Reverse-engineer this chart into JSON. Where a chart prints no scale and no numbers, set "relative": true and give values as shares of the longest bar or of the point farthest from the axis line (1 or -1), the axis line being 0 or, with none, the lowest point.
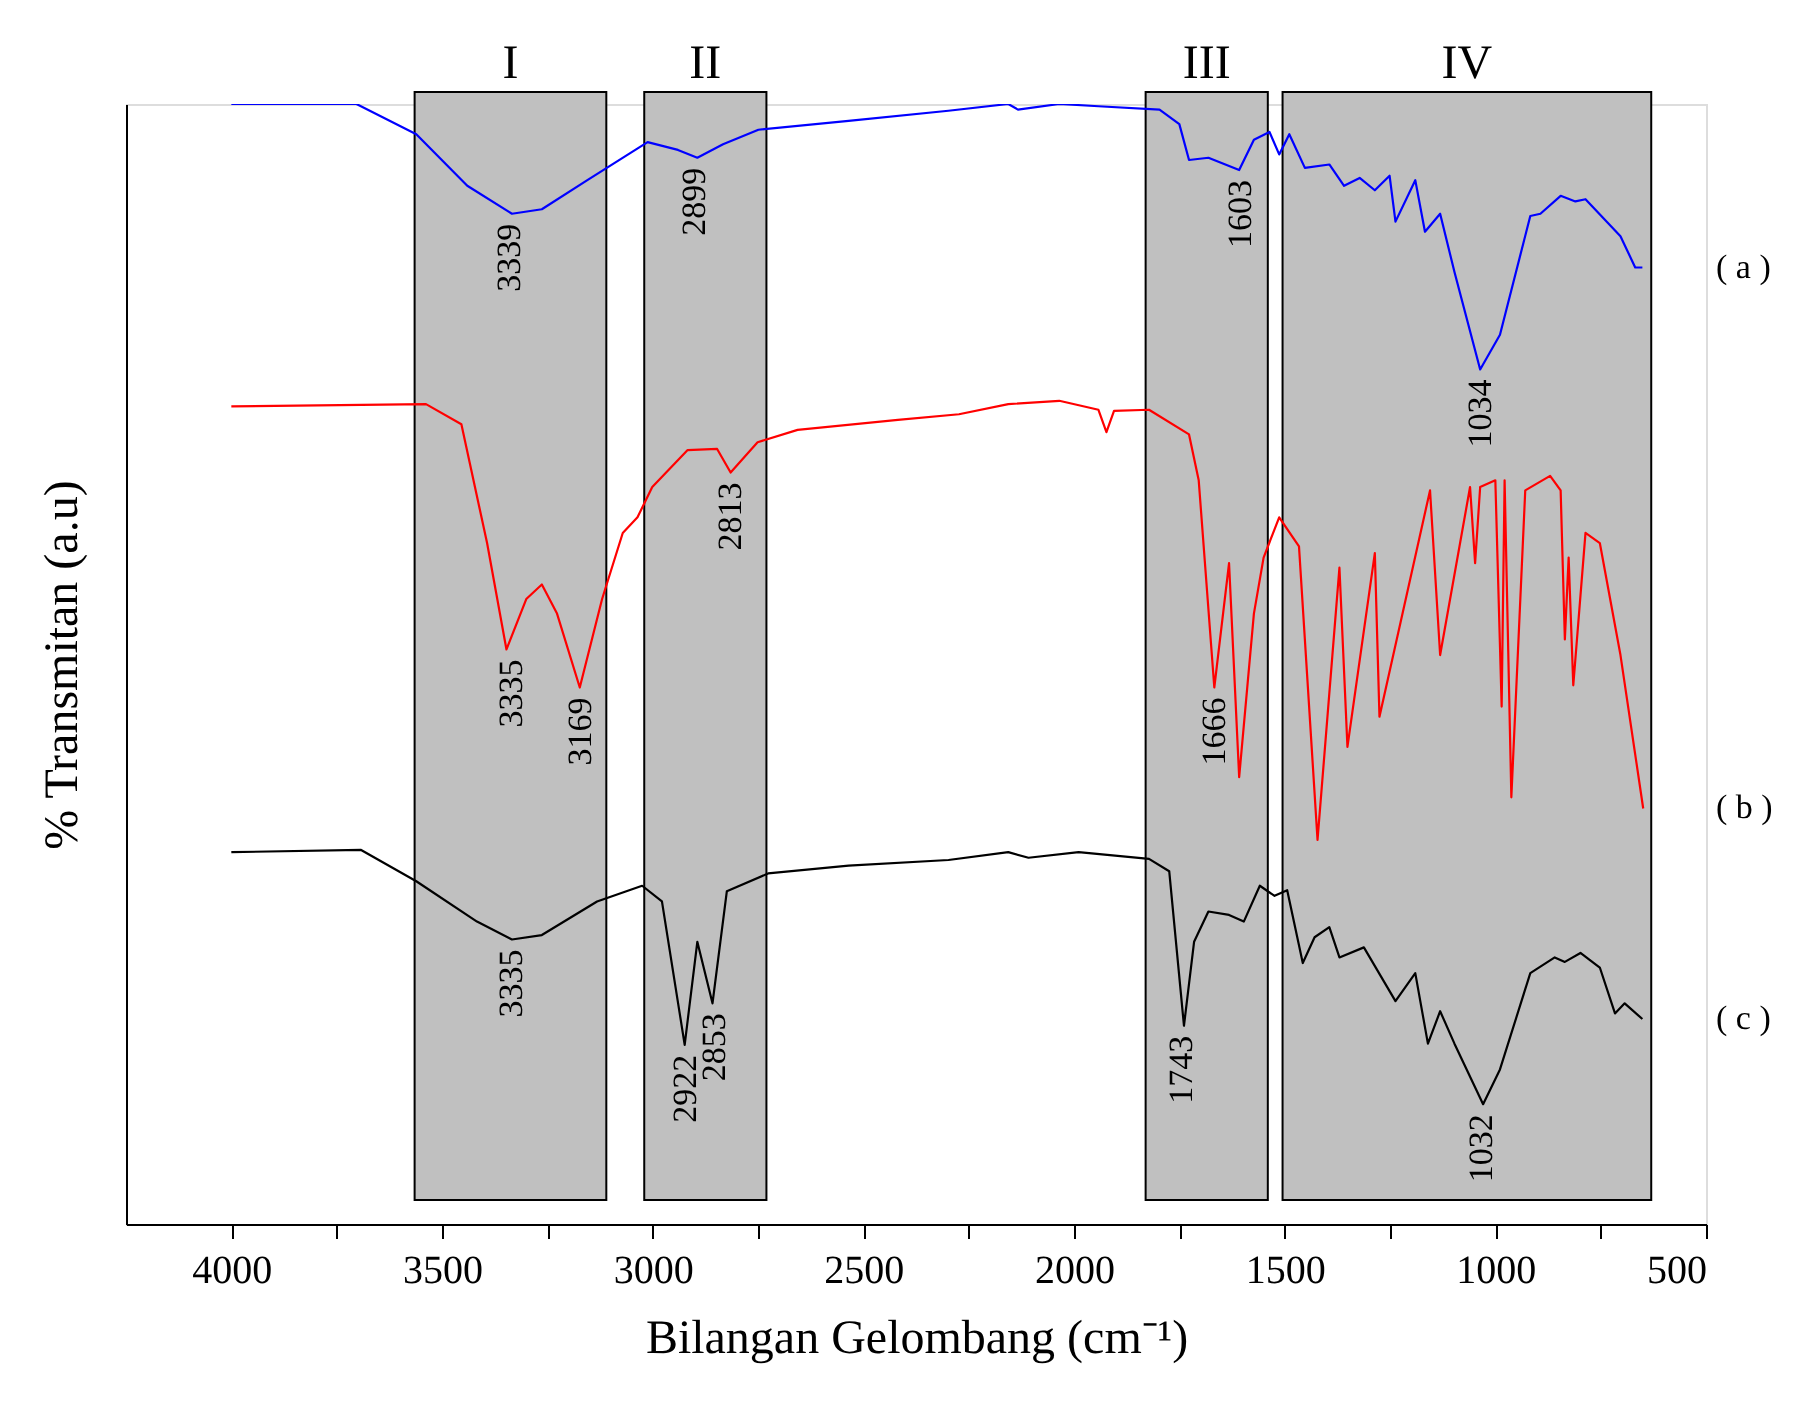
{
  "chart_data": {
    "type": "line",
    "relative": true,
    "xlabel": "Bilangan Gelombang (cm⁻¹)",
    "ylabel": "% Transmitan (a.u)",
    "xlim": [
      4250,
      500
    ],
    "xticks": [
      4000,
      {
        "value": 3750,
        "label": null
      },
      3500,
      {
        "value": 3250,
        "label": null
      },
      3000,
      {
        "value": 2750,
        "label": null
      },
      2500,
      {
        "value": 2250,
        "label": null
      },
      2000,
      {
        "value": 1750,
        "label": null
      },
      1500,
      {
        "value": 1250,
        "label": null
      },
      1000,
      {
        "value": 750,
        "label": null
      },
      500
    ],
    "grid": false,
    "marker": "none",
    "line_style": "solid",
    "series": [
      {
        "name": "( a )",
        "color": "#0000ff",
        "x": [
          4000,
          3703,
          3561,
          3440,
          3334,
          3263,
          3155,
          3012,
          2940,
          2894,
          2833,
          2749,
          2535,
          2298,
          2156,
          2133,
          2035,
          1942,
          1797,
          1750,
          1727,
          1681,
          1608,
          1573,
          1536,
          1513,
          1489,
          1452,
          1394,
          1359,
          1322,
          1286,
          1251,
          1237,
          1190,
          1167,
          1131,
          1097,
          1036,
          989,
          917,
          893,
          845,
          810,
          786,
          703,
          668,
          651
        ],
        "values": [
          1.0,
          1.0,
          0.973,
          0.927,
          0.902,
          0.906,
          0.932,
          0.966,
          0.959,
          0.952,
          0.964,
          0.977,
          0.985,
          0.994,
          1.0,
          0.995,
          1.0,
          0.998,
          0.995,
          0.982,
          0.95,
          0.952,
          0.941,
          0.968,
          0.975,
          0.955,
          0.973,
          0.943,
          0.946,
          0.927,
          0.934,
          0.923,
          0.936,
          0.895,
          0.932,
          0.886,
          0.902,
          0.85,
          0.763,
          0.794,
          0.9,
          0.902,
          0.918,
          0.913,
          0.915,
          0.882,
          0.854,
          0.854
        ]
      },
      {
        "name": "( b )",
        "color": "#ff0000",
        "x": [
          4000,
          3538,
          3454,
          3393,
          3347,
          3300,
          3263,
          3227,
          3173,
          3120,
          3071,
          3036,
          3001,
          2917,
          2847,
          2815,
          2751,
          2656,
          2418,
          2273,
          2156,
          2035,
          1942,
          1923,
          1905,
          1822,
          1727,
          1704,
          1667,
          1632,
          1608,
          1573,
          1550,
          1513,
          1466,
          1422,
          1370,
          1351,
          1286,
          1275,
          1155,
          1131,
          1060,
          1048,
          1036,
          1000,
          985,
          978,
          962,
          929,
          870,
          845,
          835,
          826,
          815,
          786,
          752,
          703,
          649
        ],
        "values": [
          0.73,
          0.732,
          0.714,
          0.608,
          0.513,
          0.558,
          0.571,
          0.545,
          0.479,
          0.558,
          0.617,
          0.631,
          0.658,
          0.691,
          0.692,
          0.671,
          0.698,
          0.709,
          0.718,
          0.723,
          0.732,
          0.735,
          0.727,
          0.707,
          0.726,
          0.727,
          0.705,
          0.664,
          0.479,
          0.59,
          0.399,
          0.545,
          0.595,
          0.631,
          0.605,
          0.343,
          0.586,
          0.426,
          0.599,
          0.453,
          0.655,
          0.508,
          0.658,
          0.59,
          0.658,
          0.664,
          0.462,
          0.664,
          0.381,
          0.655,
          0.668,
          0.655,
          0.522,
          0.595,
          0.481,
          0.617,
          0.608,
          0.508,
          0.371
        ]
      },
      {
        "name": "( c )",
        "color": "#000000",
        "x": [
          4000,
          3692,
          3561,
          3417,
          3334,
          3263,
          3132,
          3025,
          2978,
          2924,
          2894,
          2858,
          2824,
          2726,
          2535,
          2298,
          2156,
          2108,
          1989,
          1822,
          1774,
          1739,
          1715,
          1681,
          1632,
          1597,
          1559,
          1524,
          1494,
          1457,
          1429,
          1394,
          1370,
          1312,
          1237,
          1190,
          1160,
          1131,
          1097,
          1029,
          989,
          917,
          859,
          835,
          798,
          752,
          716,
          693,
          651
        ],
        "values": [
          0.332,
          0.334,
          0.306,
          0.27,
          0.254,
          0.258,
          0.288,
          0.302,
          0.288,
          0.16,
          0.252,
          0.197,
          0.297,
          0.313,
          0.32,
          0.325,
          0.332,
          0.327,
          0.332,
          0.326,
          0.315,
          0.177,
          0.252,
          0.279,
          0.276,
          0.27,
          0.302,
          0.293,
          0.298,
          0.233,
          0.256,
          0.265,
          0.238,
          0.247,
          0.199,
          0.224,
          0.161,
          0.19,
          0.161,
          0.107,
          0.138,
          0.224,
          0.238,
          0.234,
          0.242,
          0.229,
          0.188,
          0.197,
          0.183
        ]
      }
    ],
    "bands": [
      {
        "axis": "x",
        "from": 3565,
        "to": 3110,
        "label": "I",
        "color": "#c0c0c0"
      },
      {
        "axis": "x",
        "from": 3020,
        "to": 2730,
        "label": "II",
        "color": "#c0c0c0"
      },
      {
        "axis": "x",
        "from": 1830,
        "to": 1540,
        "label": "III",
        "color": "#c0c0c0"
      },
      {
        "axis": "x",
        "from": 1505,
        "to": 630,
        "label": "IV",
        "color": "#c0c0c0"
      }
    ],
    "annotations": [
      {
        "text": "3339",
        "x": 3339,
        "y": 0.902
      },
      {
        "text": "2899",
        "x": 2899,
        "y": 0.952
      },
      {
        "text": "1603",
        "x": 1603,
        "y": 0.941
      },
      {
        "text": "1034",
        "x": 1034,
        "y": 0.763
      },
      {
        "text": "3335",
        "x": 3335,
        "y": 0.513
      },
      {
        "text": "3169",
        "x": 3169,
        "y": 0.479
      },
      {
        "text": "2813",
        "x": 2813,
        "y": 0.671
      },
      {
        "text": "1666",
        "x": 1666,
        "y": 0.479
      },
      {
        "text": "3335",
        "x": 3335,
        "y": 0.254
      },
      {
        "text": "2922",
        "x": 2922,
        "y": 0.16
      },
      {
        "text": "2853",
        "x": 2853,
        "y": 0.197
      },
      {
        "text": "1743",
        "x": 1743,
        "y": 0.177
      },
      {
        "text": "1032",
        "x": 1032,
        "y": 0.107
      }
    ]
  }
}
